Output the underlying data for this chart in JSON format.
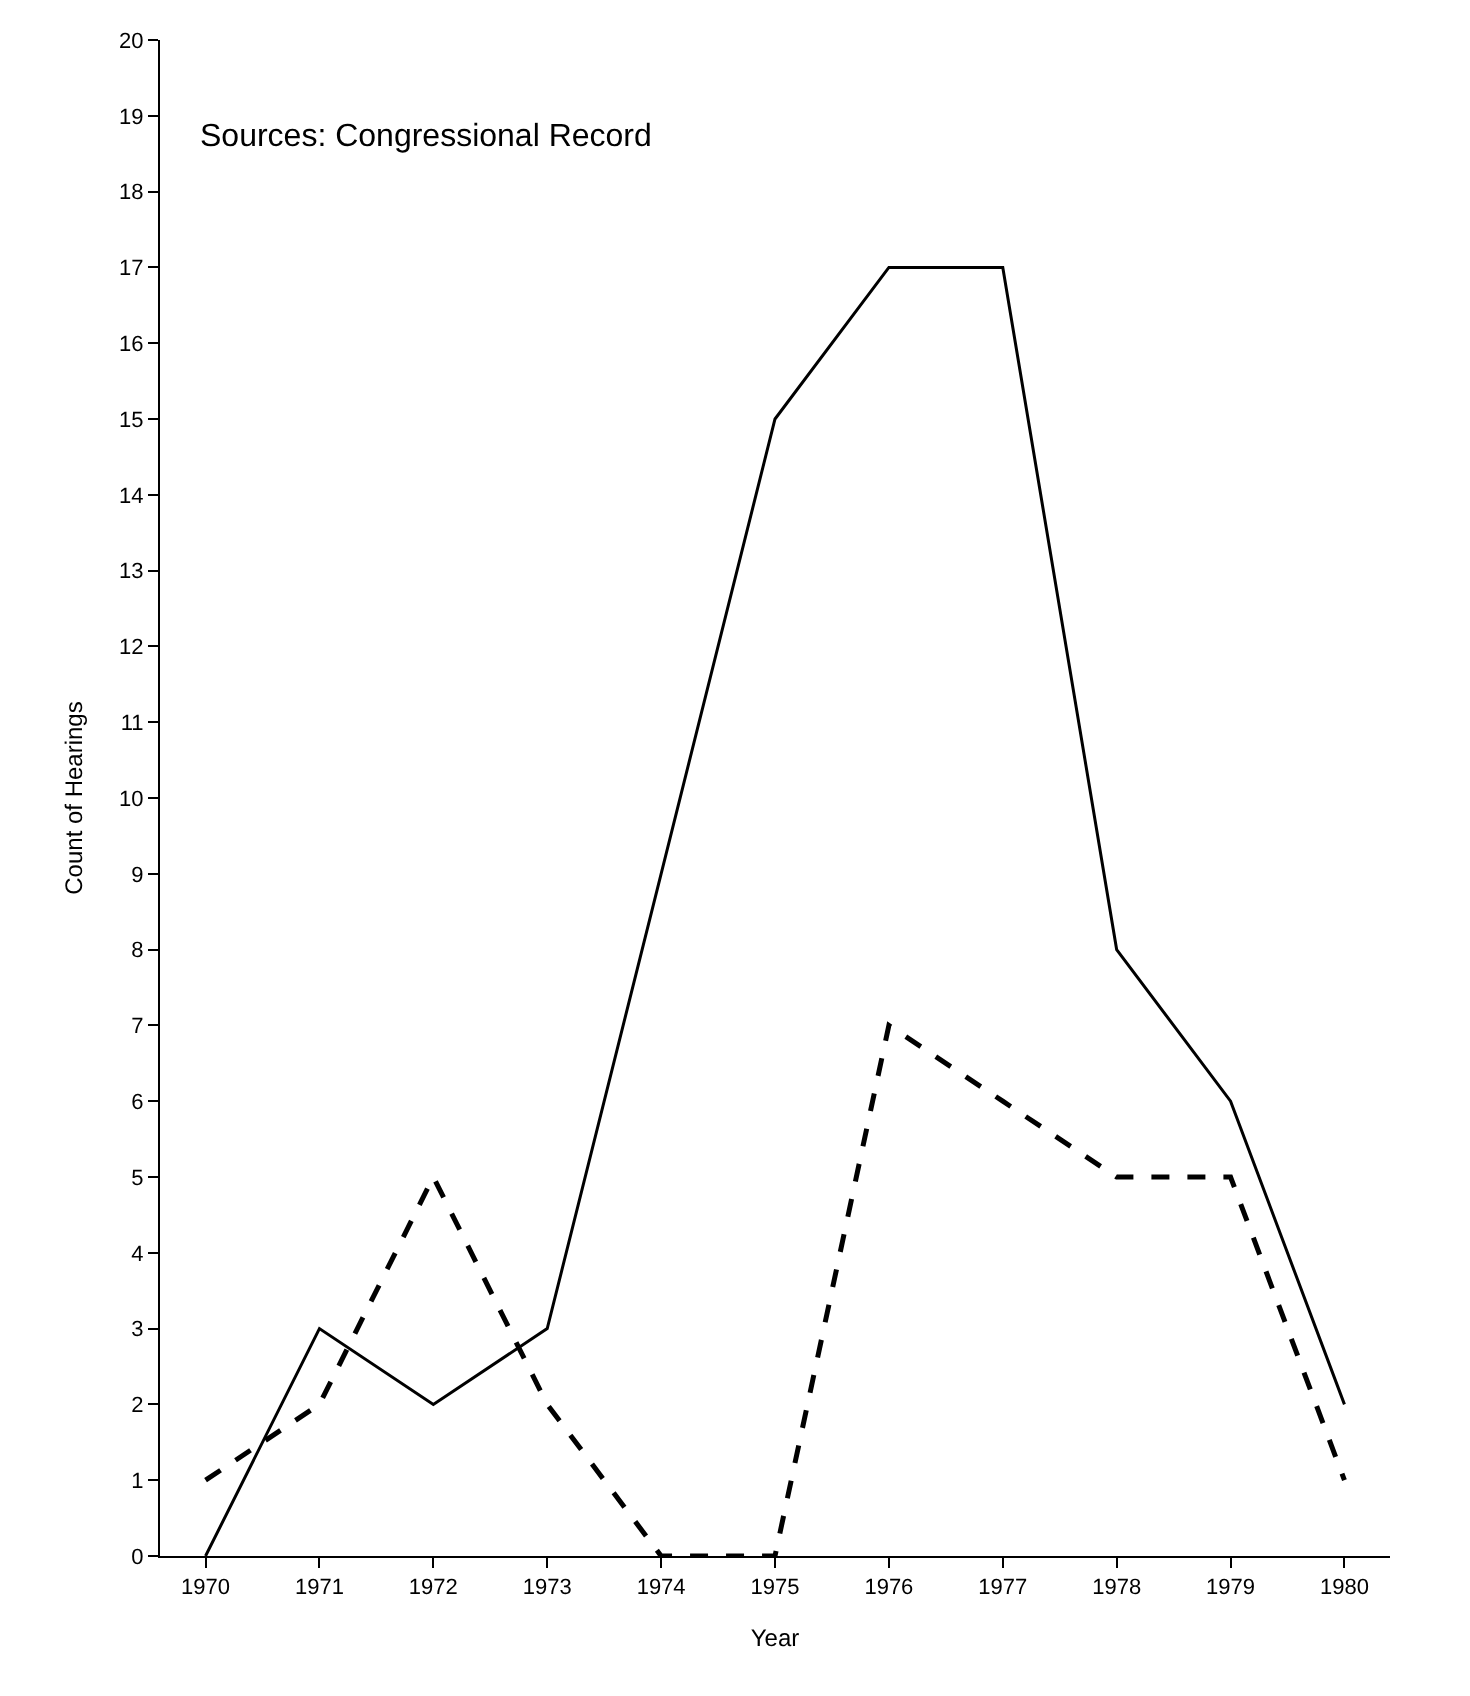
{
  "chart_data": {
    "type": "line",
    "xlabel": "Year",
    "ylabel": "Count of Hearings",
    "annotations": [
      "Sources: Congressional Record"
    ],
    "x": [
      1970,
      1971,
      1972,
      1973,
      1974,
      1975,
      1976,
      1977,
      1978,
      1979,
      1980
    ],
    "series": [
      {
        "color": "#000000",
        "line_style": "solid",
        "values": [
          0,
          3,
          2,
          3,
          9,
          15,
          17,
          17,
          8,
          6,
          2
        ]
      },
      {
        "color": "#000000",
        "line_style": "dashed",
        "values": [
          1,
          2,
          5,
          2,
          0,
          0,
          7,
          6,
          5,
          5,
          1
        ]
      }
    ],
    "xlim": [
      1969.6,
      1980.4
    ],
    "xticks": [
      1970,
      1971,
      1972,
      1973,
      1974,
      1975,
      1976,
      1977,
      1978,
      1979,
      1980
    ],
    "ylim": [
      0,
      20
    ],
    "yticks": [
      0,
      1,
      2,
      3,
      4,
      5,
      6,
      7,
      8,
      9,
      10,
      11,
      12,
      13,
      14,
      15,
      16,
      17,
      18,
      19,
      20
    ]
  }
}
